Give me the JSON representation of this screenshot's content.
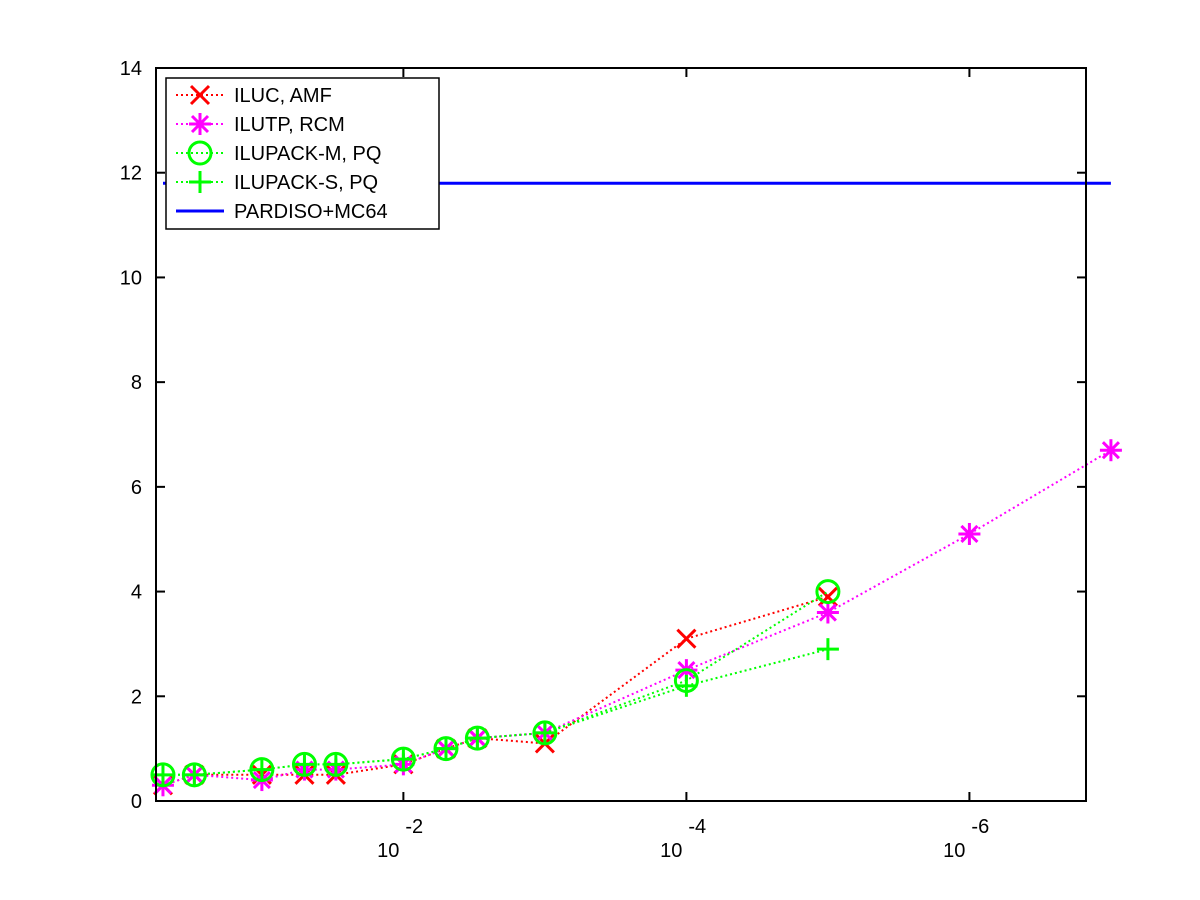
{
  "chart_data": {
    "type": "line",
    "title": "",
    "xlabel": "",
    "ylabel": "",
    "x_scale": "log-reversed",
    "xlim": [
      0.56,
      1.5e-07
    ],
    "ylim": [
      0,
      14
    ],
    "grid": false,
    "legend_position": "top-left",
    "x_tick_labels": [
      {
        "value": 0.01,
        "base": "10",
        "exponent": "-2"
      },
      {
        "value": 0.0001,
        "base": "10",
        "exponent": "-4"
      },
      {
        "value": 1e-06,
        "base": "10",
        "exponent": "-6"
      }
    ],
    "y_ticks": [
      0,
      2,
      4,
      6,
      8,
      10,
      12,
      14
    ],
    "y_tick_labels": [
      "0",
      "2",
      "4",
      "6",
      "8",
      "10",
      "12",
      "14"
    ],
    "series": [
      {
        "name": "ILUC, AMF",
        "color": "#ff0000",
        "marker": "x",
        "line": "dotted",
        "x": [
          0.5,
          0.3,
          0.1,
          0.05,
          0.03,
          0.01,
          0.005,
          0.003,
          0.001,
          0.0001,
          1e-05
        ],
        "y": [
          0.3,
          0.5,
          0.5,
          0.5,
          0.5,
          0.7,
          1.0,
          1.2,
          1.1,
          3.1,
          3.9
        ]
      },
      {
        "name": "ILUTP, RCM",
        "color": "#ff00ff",
        "marker": "asterisk",
        "line": "dotted",
        "x": [
          0.5,
          0.3,
          0.1,
          0.05,
          0.03,
          0.01,
          0.005,
          0.003,
          0.001,
          0.0001,
          1e-05,
          1e-06,
          1e-07
        ],
        "y": [
          0.3,
          0.5,
          0.4,
          0.6,
          0.6,
          0.7,
          1.0,
          1.2,
          1.3,
          2.5,
          3.6,
          5.1,
          6.7
        ]
      },
      {
        "name": "ILUPACK-M, PQ",
        "color": "#00ff00",
        "marker": "circle",
        "line": "dotted",
        "x": [
          0.5,
          0.3,
          0.1,
          0.05,
          0.03,
          0.01,
          0.005,
          0.003,
          0.001,
          0.0001,
          1e-05
        ],
        "y": [
          0.5,
          0.5,
          0.6,
          0.7,
          0.7,
          0.8,
          1.0,
          1.2,
          1.3,
          2.3,
          4.0
        ]
      },
      {
        "name": "ILUPACK-S, PQ",
        "color": "#00ff00",
        "marker": "plus",
        "line": "dotted",
        "x": [
          0.5,
          0.3,
          0.1,
          0.05,
          0.03,
          0.01,
          0.005,
          0.003,
          0.001,
          0.0001,
          1e-05
        ],
        "y": [
          0.5,
          0.5,
          0.6,
          0.7,
          0.7,
          0.8,
          1.0,
          1.2,
          1.3,
          2.2,
          2.9
        ]
      },
      {
        "name": "PARDISO+MC64",
        "color": "#0000ff",
        "marker": "none",
        "line": "solid",
        "x": [
          0.5,
          1e-07
        ],
        "y": [
          11.8,
          11.8
        ]
      }
    ]
  }
}
